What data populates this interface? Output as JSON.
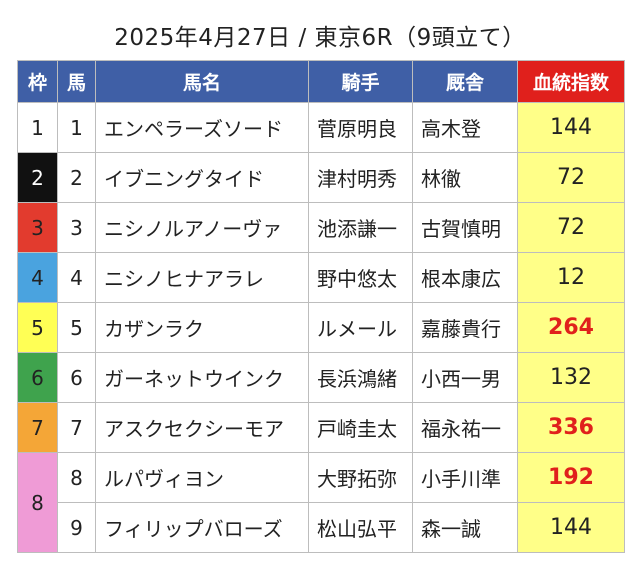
{
  "title": "2025年4月27日 / 東京6R（9頭立て）",
  "headers": {
    "waku": "枠",
    "uma": "馬",
    "name": "馬名",
    "jockey": "騎手",
    "stable": "厩舎",
    "index": "血統指数"
  },
  "colors": {
    "header_bg": "#3f5fa6",
    "index_header_bg": "#e0201c",
    "index_cell_bg": "#ffff88",
    "highlight_text": "#e0201c",
    "waku": {
      "1": "#ffffff",
      "2": "#111111",
      "3": "#e23b2e",
      "4": "#4aa3df",
      "5": "#ffff55",
      "6": "#3fa34d",
      "7": "#f4a637",
      "8": "#ef9bd6"
    }
  },
  "rows": [
    {
      "waku": "1",
      "uma": "1",
      "name": "エンペラーズソード",
      "jockey": "菅原明良",
      "stable": "高木登",
      "index": "144",
      "highlight": false
    },
    {
      "waku": "2",
      "uma": "2",
      "name": "イブニングタイド",
      "jockey": "津村明秀",
      "stable": "林徹",
      "index": "72",
      "highlight": false
    },
    {
      "waku": "3",
      "uma": "3",
      "name": "ニシノルアノーヴァ",
      "jockey": "池添謙一",
      "stable": "古賀慎明",
      "index": "72",
      "highlight": false
    },
    {
      "waku": "4",
      "uma": "4",
      "name": "ニシノヒナアラレ",
      "jockey": "野中悠太",
      "stable": "根本康広",
      "index": "12",
      "highlight": false
    },
    {
      "waku": "5",
      "uma": "5",
      "name": "カザンラク",
      "jockey": "ルメール",
      "stable": "嘉藤貴行",
      "index": "264",
      "highlight": true
    },
    {
      "waku": "6",
      "uma": "6",
      "name": "ガーネットウインク",
      "jockey": "長浜鴻緒",
      "stable": "小西一男",
      "index": "132",
      "highlight": false
    },
    {
      "waku": "7",
      "uma": "7",
      "name": "アスクセクシーモア",
      "jockey": "戸崎圭太",
      "stable": "福永祐一",
      "index": "336",
      "highlight": true
    },
    {
      "waku": "8",
      "uma": "8",
      "name": "ルパヴィヨン",
      "jockey": "大野拓弥",
      "stable": "小手川準",
      "index": "192",
      "highlight": true
    },
    {
      "waku": "8",
      "uma": "9",
      "name": "フィリップバローズ",
      "jockey": "松山弘平",
      "stable": "森一誠",
      "index": "144",
      "highlight": false
    }
  ]
}
